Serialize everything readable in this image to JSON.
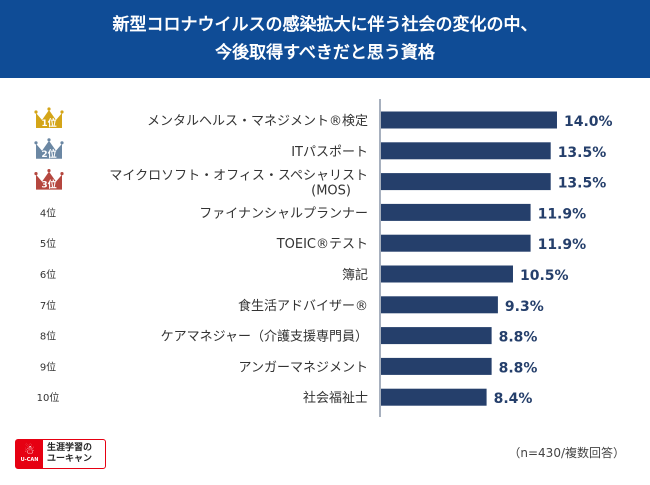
{
  "header": {
    "title_line1": "新型コロナウイルスの感染拡大に伴う社会の変化の中、",
    "title_line2": "今後取得すべきだと思う資格"
  },
  "colors": {
    "header_bg": "#0f4c96",
    "bar": "#253f6b",
    "value_text": "#253f6b",
    "rank1": "#d4a518",
    "rank2": "#6b87a3",
    "rank3": "#b5473f",
    "axis": "#8a96a8"
  },
  "chart_data": {
    "type": "bar",
    "orientation": "horizontal",
    "title": "新型コロナウイルスの感染拡大に伴う社会の変化の中、今後取得すべきだと思う資格",
    "xlabel": "",
    "ylabel": "",
    "xlim": [
      0,
      14
    ],
    "grid": false,
    "ranks": [
      "1位",
      "2位",
      "3位",
      "4位",
      "5位",
      "6位",
      "7位",
      "8位",
      "9位",
      "10位"
    ],
    "categories": [
      [
        "メンタルヘルス・マネジメント®検定"
      ],
      [
        "ITパスポート"
      ],
      [
        "マイクロソフト・オフィス・スペシャリスト",
        "(MOS)"
      ],
      [
        "ファイナンシャルプランナー"
      ],
      [
        "TOEIC®テスト"
      ],
      [
        "簿記"
      ],
      [
        "食生活アドバイザー®"
      ],
      [
        "ケアマネジャー（介護支援専門員）"
      ],
      [
        "アンガーマネジメント"
      ],
      [
        "社会福祉士"
      ]
    ],
    "values": [
      14.0,
      13.5,
      13.5,
      11.9,
      11.9,
      10.5,
      9.3,
      8.8,
      8.8,
      8.4
    ],
    "value_labels": [
      "14.0%",
      "13.5%",
      "13.5%",
      "11.9%",
      "11.9%",
      "10.5%",
      "9.3%",
      "8.8%",
      "8.8%",
      "8.4%"
    ],
    "unit": "%"
  },
  "footnote": "（n=430/複数回答）",
  "logo": {
    "brand": "U-CAN",
    "line1": "生涯学習の",
    "line2": "ユーキャン",
    "icon": "u-can-figure-icon"
  }
}
